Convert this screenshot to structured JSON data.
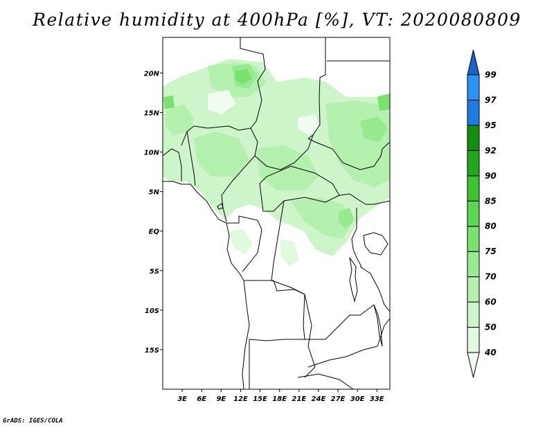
{
  "title": "Relative humidity at 400hPa [%], VT: 2020080809",
  "credit": "GrADS: IGES/COLA",
  "map": {
    "lat_labels": [
      "20N",
      "15N",
      "10N",
      "5N",
      "EQ",
      "5S",
      "10S",
      "15S"
    ],
    "lon_labels": [
      "3E",
      "6E",
      "9E",
      "12E",
      "15E",
      "18E",
      "21E",
      "24E",
      "27E",
      "30E",
      "33E"
    ]
  },
  "colorbar": {
    "levels": [
      "40",
      "50",
      "60",
      "70",
      "75",
      "80",
      "85",
      "90",
      "92",
      "95",
      "97",
      "99"
    ],
    "colors": [
      "#f0fcf0",
      "#e1f9df",
      "#cdf5c9",
      "#b4f0ae",
      "#98ea90",
      "#7ae070",
      "#5ad650",
      "#3cc232",
      "#1fa91a",
      "#138f10",
      "#1e7ce0",
      "#2b93f5",
      "#1a63c8"
    ]
  },
  "chart_data": {
    "type": "heatmap",
    "title": "Relative humidity at 400hPa [%], VT: 2020080809",
    "variable": "Relative humidity at 400hPa",
    "units": "%",
    "valid_time": "2020080809",
    "x_axis": "longitude",
    "y_axis": "latitude",
    "xlim": [
      0,
      35
    ],
    "ylim": [
      -20,
      24.5
    ],
    "lon_ticks": [
      3,
      6,
      9,
      12,
      15,
      18,
      21,
      24,
      27,
      30,
      33
    ],
    "lat_ticks": [
      20,
      15,
      10,
      5,
      0,
      -5,
      -10,
      -15
    ],
    "contour_levels": [
      40,
      50,
      60,
      70,
      75,
      80,
      85,
      90,
      92,
      95,
      97,
      99
    ],
    "humid_regions": [
      {
        "lon": [
          0,
          35
        ],
        "lat": [
          3,
          21
        ],
        "value_range": [
          40,
          85
        ]
      },
      {
        "lon": [
          18,
          35
        ],
        "lat": [
          -3,
          3
        ],
        "value_range": [
          40,
          75
        ]
      }
    ]
  }
}
